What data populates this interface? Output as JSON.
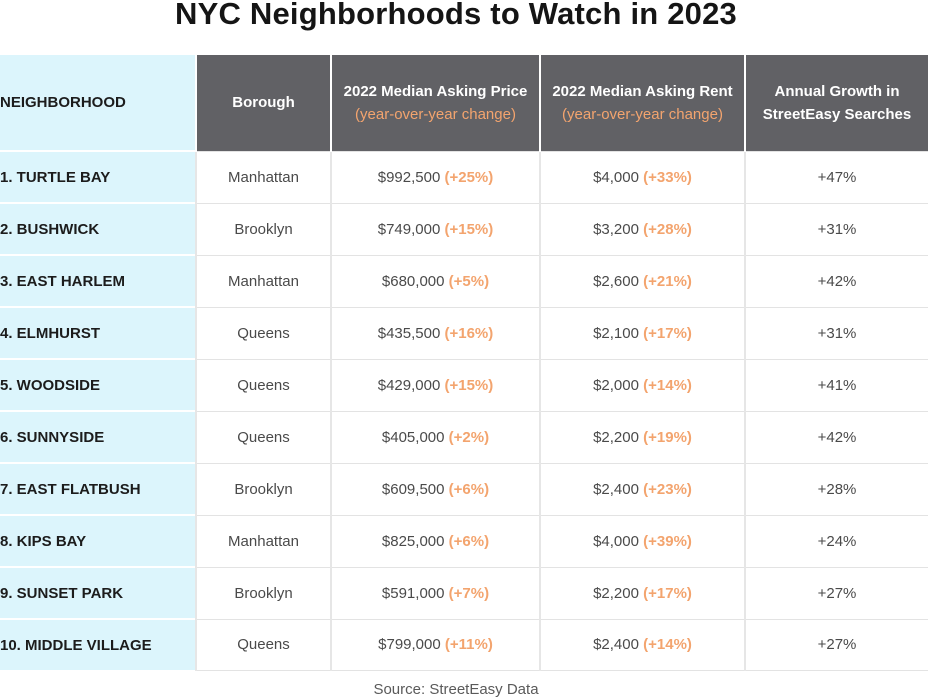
{
  "chart_data": {
    "type": "table",
    "title": "NYC Neighborhoods to Watch in 2023",
    "columns": [
      {
        "label": "NEIGHBORHOOD",
        "sub": ""
      },
      {
        "label": "Borough",
        "sub": ""
      },
      {
        "label": "2022 Median Asking Price",
        "sub": "(year-over-year change)"
      },
      {
        "label": "2022 Median Asking Rent",
        "sub": "(year-over-year change)"
      },
      {
        "label": "Annual Growth in",
        "sub": "StreetEasy Searches"
      }
    ],
    "rows": [
      {
        "neighborhood": "1.  TURTLE BAY",
        "borough": "Manhattan",
        "price": "$992,500",
        "price_change": "(+25%)",
        "rent": "$4,000",
        "rent_change": "(+33%)",
        "search_growth": "+47%"
      },
      {
        "neighborhood": "2. BUSHWICK",
        "borough": "Brooklyn",
        "price": "$749,000",
        "price_change": "(+15%)",
        "rent": "$3,200",
        "rent_change": "(+28%)",
        "search_growth": "+31%"
      },
      {
        "neighborhood": "3. EAST HARLEM",
        "borough": "Manhattan",
        "price": "$680,000",
        "price_change": "(+5%)",
        "rent": "$2,600",
        "rent_change": "(+21%)",
        "search_growth": "+42%"
      },
      {
        "neighborhood": "4. ELMHURST",
        "borough": "Queens",
        "price": "$435,500",
        "price_change": "(+16%)",
        "rent": "$2,100",
        "rent_change": "(+17%)",
        "search_growth": "+31%"
      },
      {
        "neighborhood": "5. WOODSIDE",
        "borough": "Queens",
        "price": "$429,000",
        "price_change": "(+15%)",
        "rent": "$2,000",
        "rent_change": "(+14%)",
        "search_growth": "+41%"
      },
      {
        "neighborhood": "6. SUNNYSIDE",
        "borough": "Queens",
        "price": "$405,000",
        "price_change": "(+2%)",
        "rent": "$2,200",
        "rent_change": "(+19%)",
        "search_growth": "+42%"
      },
      {
        "neighborhood": "7. EAST FLATBUSH",
        "borough": "Brooklyn",
        "price": "$609,500",
        "price_change": "(+6%)",
        "rent": "$2,400",
        "rent_change": "(+23%)",
        "search_growth": "+28%"
      },
      {
        "neighborhood": "8. KIPS BAY",
        "borough": "Manhattan",
        "price": "$825,000",
        "price_change": "(+6%)",
        "rent": "$4,000",
        "rent_change": "(+39%)",
        "search_growth": "+24%"
      },
      {
        "neighborhood": "9. SUNSET PARK",
        "borough": "Brooklyn",
        "price": "$591,000",
        "price_change": "(+7%)",
        "rent": "$2,200",
        "rent_change": "(+17%)",
        "search_growth": "+27%"
      },
      {
        "neighborhood": "10. MIDDLE VILLAGE",
        "borough": "Queens",
        "price": "$799,000",
        "price_change": "(+11%)",
        "rent": "$2,400",
        "rent_change": "(+14%)",
        "search_growth": "+27%"
      }
    ],
    "source": "Source: StreetEasy Data"
  },
  "colors": {
    "header_bg": "#616165",
    "neighborhood_bg": "#dcf5fc",
    "change_accent": "#f3a46e"
  }
}
